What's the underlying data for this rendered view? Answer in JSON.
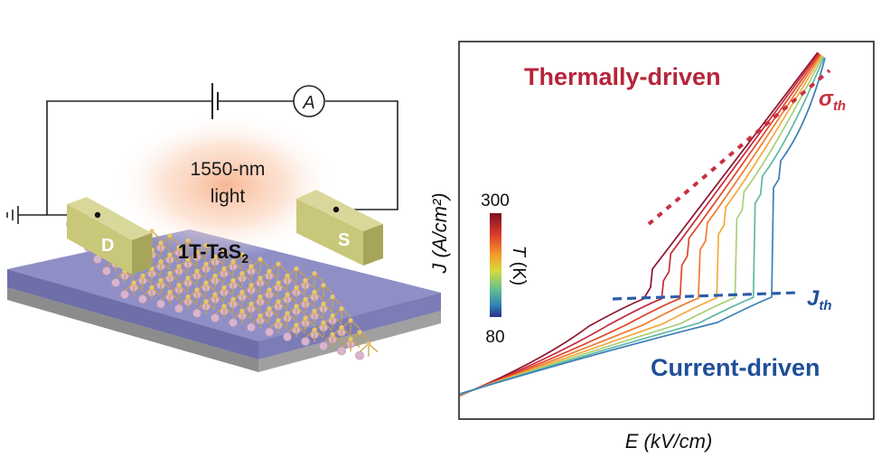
{
  "schematic": {
    "light_label_line1": "1550-nm",
    "light_label_line2": "light",
    "material_label": "1T-TaS",
    "material_subscript": "2",
    "drain_label": "D",
    "source_label": "S",
    "ammeter_label": "A"
  },
  "chart_data": {
    "type": "line",
    "xlabel": "E (kV/cm)",
    "ylabel": "J (A/cm²)",
    "annotations": {
      "thermal_label": "Thermally-driven",
      "current_label": "Current-driven",
      "sigma_symbol": "σ",
      "sigma_subscript": "th",
      "j_symbol": "J",
      "j_subscript": "th"
    },
    "colorbar": {
      "variable": "T",
      "unit": "(K)",
      "max_label": "300",
      "min_label": "80"
    },
    "colors": {
      "thermal": "#b5253a",
      "current": "#1f4f99",
      "sigma_line": "#c8303f",
      "jth_line": "#2a5da8"
    },
    "series_colors": [
      "#8e1430",
      "#c4283c",
      "#e0452a",
      "#f07a2f",
      "#f3a93b",
      "#a8cf7a",
      "#5fb7a5",
      "#3b7fb8"
    ]
  }
}
